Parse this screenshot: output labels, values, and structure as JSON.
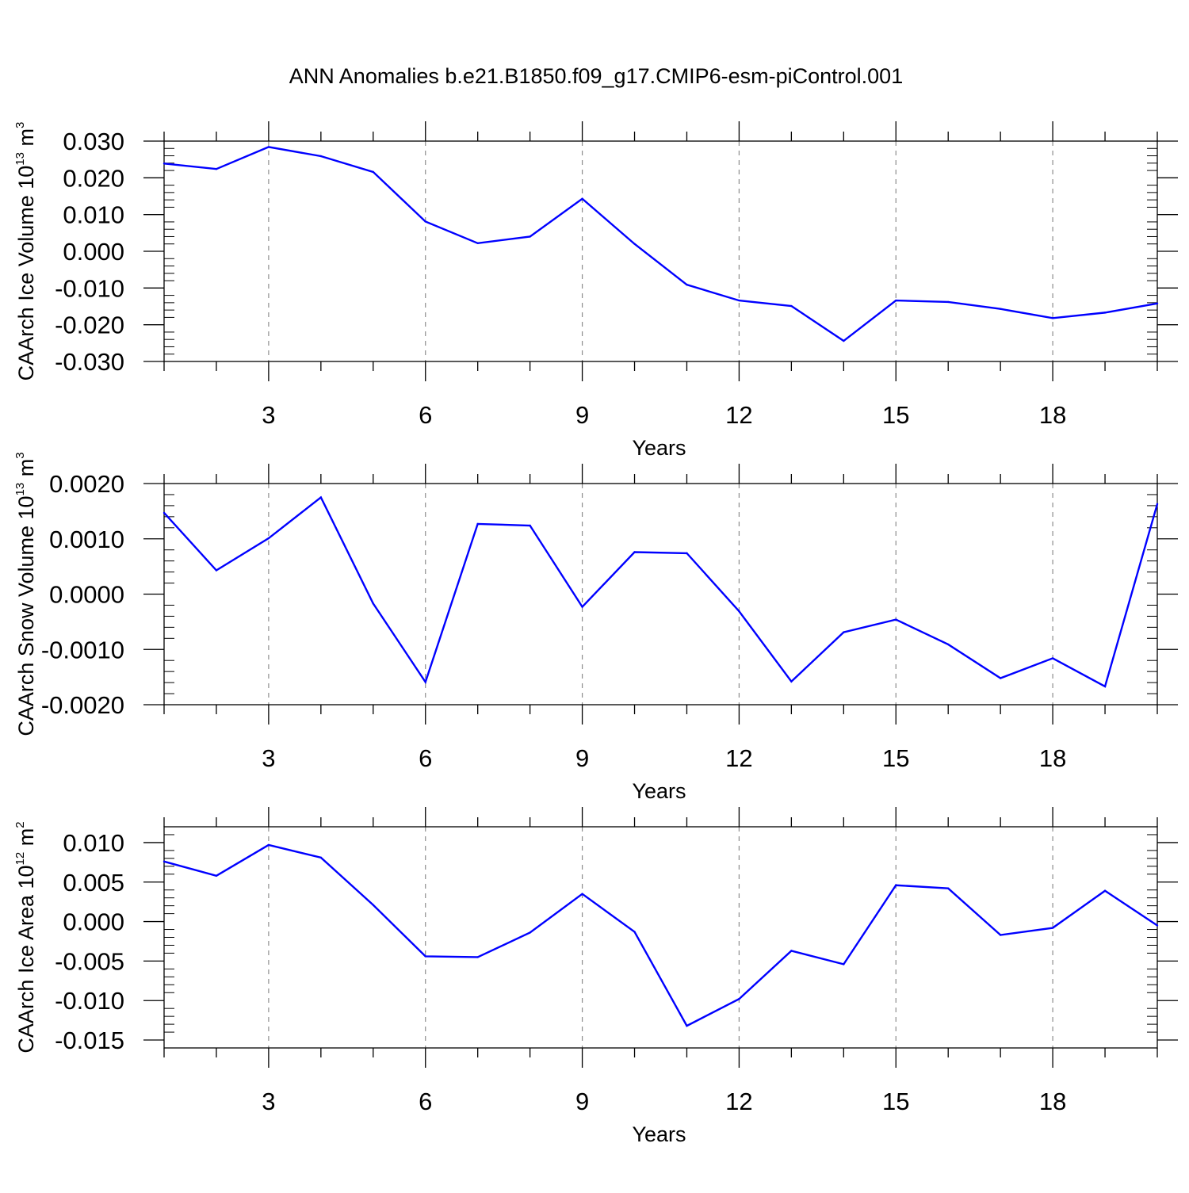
{
  "figure_title": "ANN Anomalies b.e21.B1850.f09_g17.CMIP6-esm-piControl.001",
  "line_color": "#0000ff",
  "grid_color": "#8c8c8c",
  "chart_data": [
    {
      "type": "line",
      "title": "ANN Anomalies b.e21.B1850.f09_g17.CMIP6-esm-piControl.001",
      "xlabel": "Years",
      "ylabel_main": "CAArch Ice Volume 10",
      "ylabel_exp": "13",
      "ylabel_unit": " m",
      "ylabel_unit_exp": "3",
      "xlim": [
        1,
        20
      ],
      "ylim": [
        -0.03,
        0.03
      ],
      "x_ticks": [
        3,
        6,
        9,
        12,
        15,
        18
      ],
      "x_tick_labels": [
        "3",
        "6",
        "9",
        "12",
        "15",
        "18"
      ],
      "y_ticks": [
        -0.03,
        -0.02,
        -0.01,
        0.0,
        0.01,
        0.02,
        0.03
      ],
      "y_tick_labels": [
        "-0.030",
        "-0.020",
        "-0.010",
        "0.000",
        "0.010",
        "0.020",
        "0.030"
      ],
      "grid": "vertical dashed at major x ticks",
      "x": [
        1,
        2,
        3,
        4,
        5,
        6,
        7,
        8,
        9,
        10,
        11,
        12,
        13,
        14,
        15,
        16,
        17,
        18,
        19,
        20
      ],
      "series": [
        {
          "values": [
            0.0239,
            0.0224,
            0.0284,
            0.0259,
            0.0216,
            0.0081,
            0.0022,
            0.004,
            0.0143,
            0.002,
            -0.0091,
            -0.0134,
            -0.0149,
            -0.0244,
            -0.0134,
            -0.0138,
            -0.0157,
            -0.0182,
            -0.0167,
            -0.0142
          ]
        }
      ]
    },
    {
      "type": "line",
      "xlabel": "Years",
      "ylabel_main": "CAArch Snow Volume 10",
      "ylabel_exp": "13",
      "ylabel_unit": " m",
      "ylabel_unit_exp": "3",
      "xlim": [
        1,
        20
      ],
      "ylim": [
        -0.002,
        0.002
      ],
      "x_ticks": [
        3,
        6,
        9,
        12,
        15,
        18
      ],
      "x_tick_labels": [
        "3",
        "6",
        "9",
        "12",
        "15",
        "18"
      ],
      "y_ticks": [
        -0.002,
        -0.001,
        0.0,
        0.001,
        0.002
      ],
      "y_tick_labels": [
        "-0.0020",
        "-0.0010",
        "0.0000",
        "0.0010",
        "0.0020"
      ],
      "grid": "vertical dashed at major x ticks",
      "x": [
        1,
        2,
        3,
        4,
        5,
        6,
        7,
        8,
        9,
        10,
        11,
        12,
        13,
        14,
        15,
        16,
        17,
        18,
        19,
        20
      ],
      "series": [
        {
          "values": [
            0.00147,
            0.00043,
            0.00101,
            0.00175,
            -0.00017,
            -0.00159,
            0.00127,
            0.00124,
            -0.00023,
            0.00076,
            0.00074,
            -0.00031,
            -0.00158,
            -0.00069,
            -0.00046,
            -0.00091,
            -0.00152,
            -0.00116,
            -0.00167,
            0.00163
          ]
        }
      ]
    },
    {
      "type": "line",
      "xlabel": "Years",
      "ylabel_main": "CAArch Ice Area 10",
      "ylabel_exp": "12",
      "ylabel_unit": " m",
      "ylabel_unit_exp": "2",
      "xlim": [
        1,
        20
      ],
      "ylim": [
        -0.016,
        0.012
      ],
      "x_ticks": [
        3,
        6,
        9,
        12,
        15,
        18
      ],
      "x_tick_labels": [
        "3",
        "6",
        "9",
        "12",
        "15",
        "18"
      ],
      "y_ticks": [
        -0.015,
        -0.01,
        -0.005,
        0.0,
        0.005,
        0.01
      ],
      "y_tick_labels": [
        "-0.015",
        "-0.010",
        "-0.005",
        "0.000",
        "0.005",
        "0.010"
      ],
      "grid": "vertical dashed at major x ticks",
      "x": [
        1,
        2,
        3,
        4,
        5,
        6,
        7,
        8,
        9,
        10,
        11,
        12,
        13,
        14,
        15,
        16,
        17,
        18,
        19,
        20
      ],
      "series": [
        {
          "values": [
            0.0076,
            0.0058,
            0.0097,
            0.0081,
            0.0021,
            -0.0044,
            -0.0045,
            -0.0014,
            0.0035,
            -0.0013,
            -0.0132,
            -0.0098,
            -0.0037,
            -0.0054,
            0.0046,
            0.0042,
            -0.0017,
            -0.0008,
            0.0039,
            -0.0005
          ]
        }
      ]
    }
  ]
}
